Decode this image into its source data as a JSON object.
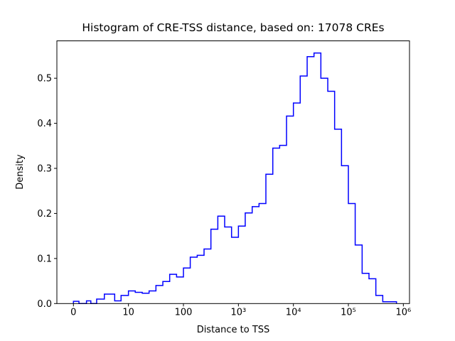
{
  "figure": {
    "title": "Histogram of CRE-TSS distance, based on: 17078 CREs",
    "background_color": "#ffffff"
  },
  "chart_data": {
    "type": "step-histogram",
    "title": "Histogram of CRE-TSS distance, based on: 17078 CREs",
    "xlabel": "Distance to TSS",
    "ylabel": "Density",
    "n_samples": 17078,
    "line_color": "#0000ff",
    "axis_color": "#000000",
    "grid": false,
    "legend": false,
    "x_scale": "symlog_linear_below_10",
    "ylim": [
      0,
      0.583
    ],
    "x_ticks": [
      {
        "value": 0,
        "label": "0"
      },
      {
        "value": 10,
        "label": "10"
      },
      {
        "value": 100,
        "label": "100"
      },
      {
        "value": 1000,
        "label": "10³"
      },
      {
        "value": 10000,
        "label": "10⁴"
      },
      {
        "value": 100000,
        "label": "10⁵"
      },
      {
        "value": 1000000,
        "label": "10⁶"
      }
    ],
    "y_ticks": [
      {
        "value": 0.0,
        "label": "0.0"
      },
      {
        "value": 0.1,
        "label": "0.1"
      },
      {
        "value": 0.2,
        "label": "0.2"
      },
      {
        "value": 0.3,
        "label": "0.3"
      },
      {
        "value": 0.4,
        "label": "0.4"
      },
      {
        "value": 0.5,
        "label": "0.5"
      }
    ],
    "bin_edges": [
      0,
      1,
      1.33,
      1.78,
      2.37,
      3.16,
      4.22,
      5.62,
      7.5,
      8.66,
      10,
      13.3,
      17.8,
      23.7,
      31.6,
      42.2,
      56.2,
      75,
      100,
      133,
      178,
      237,
      316,
      422,
      562,
      750,
      1000,
      1330,
      1780,
      2370,
      3160,
      4220,
      5620,
      7500,
      10000,
      13300,
      17800,
      23700,
      31600,
      42200,
      56200,
      75000,
      100000,
      133000,
      178000,
      237000,
      316000,
      422000,
      562000,
      750000
    ],
    "densities": [
      0.005,
      0,
      0,
      0,
      0.006,
      0,
      0.01,
      0.021,
      0.006,
      0.018,
      0.028,
      0.025,
      0.023,
      0.028,
      0.04,
      0.049,
      0.065,
      0.059,
      0.079,
      0.103,
      0.107,
      0.121,
      0.165,
      0.194,
      0.17,
      0.147,
      0.172,
      0.201,
      0.215,
      0.222,
      0.287,
      0.345,
      0.351,
      0.416,
      0.445,
      0.505,
      0.548,
      0.556,
      0.5,
      0.471,
      0.387,
      0.306,
      0.222,
      0.13,
      0.067,
      0.055,
      0.018,
      0.004,
      0.004
    ]
  }
}
